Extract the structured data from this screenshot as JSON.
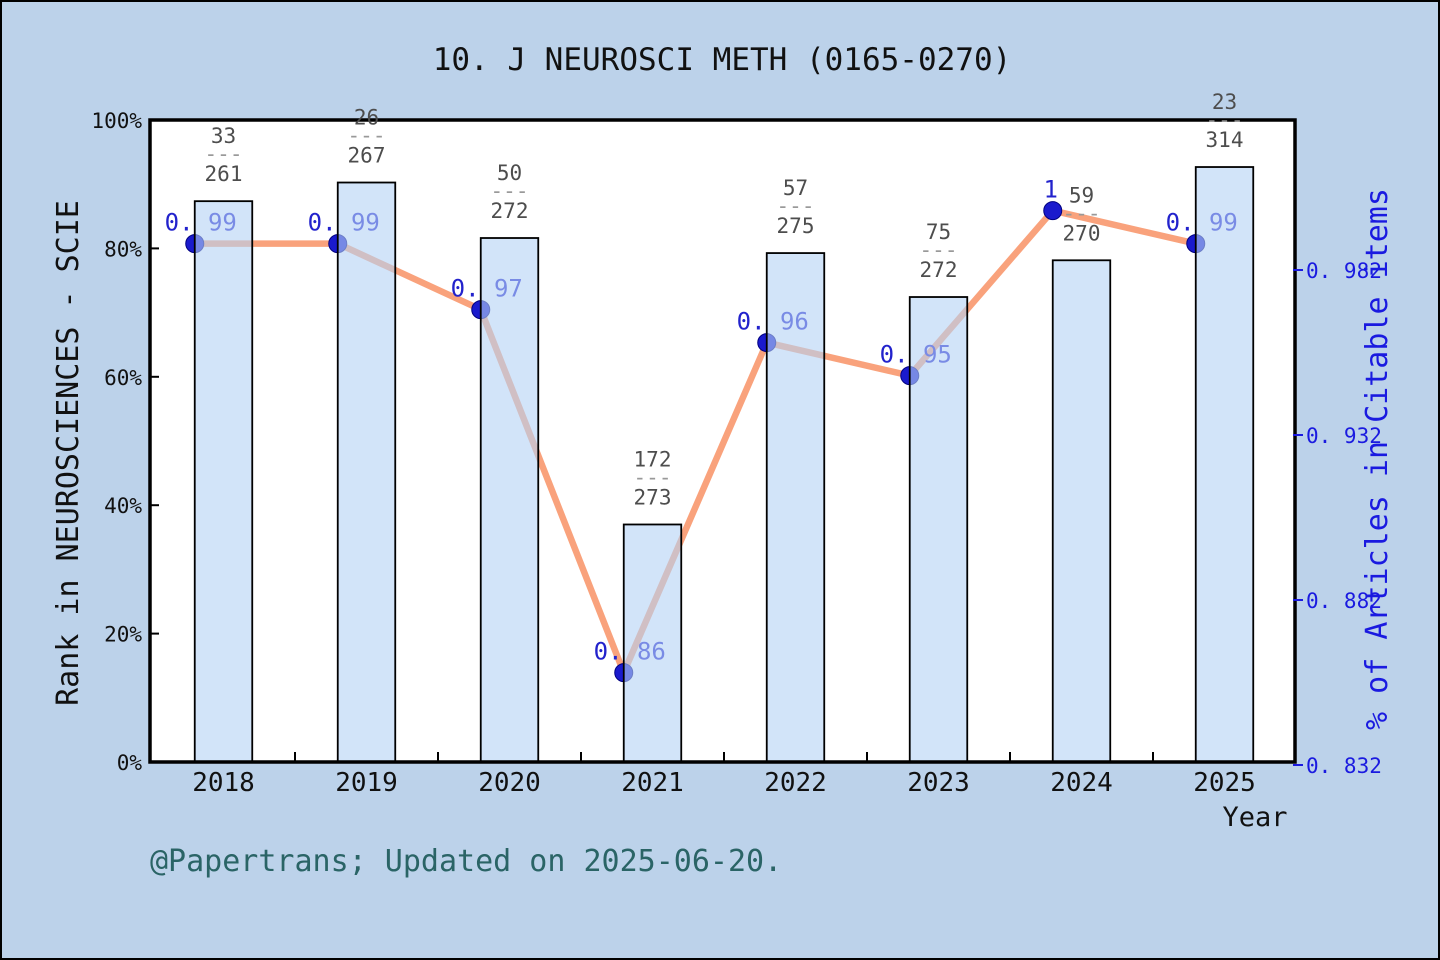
{
  "title": "10. J NEUROSCI METH (0165-0270)",
  "footer": "@Papertrans; Updated on 2025-06-20.",
  "x_axis": {
    "label": "Year",
    "ticks": [
      "2018",
      "2019",
      "2020",
      "2021",
      "2022",
      "2023",
      "2024",
      "2025"
    ]
  },
  "left_axis": {
    "label": "Rank in NEUROSCIENCES - SCIE",
    "ticks": [
      "0%",
      "20%",
      "40%",
      "60%",
      "80%",
      "100%"
    ],
    "tick_values": [
      0,
      0.2,
      0.4,
      0.6,
      0.8,
      1.0
    ]
  },
  "right_axis": {
    "label": "% of Articles in Citable items",
    "ticks": [
      "0. 832",
      "0. 882",
      "0. 932",
      "0. 982"
    ],
    "tick_values": [
      0.832,
      0.882,
      0.932,
      0.982
    ]
  },
  "chart_data": {
    "type": "bar+line",
    "categories": [
      "2018",
      "2019",
      "2020",
      "2021",
      "2022",
      "2023",
      "2024",
      "2025"
    ],
    "series": [
      {
        "name": "Rank in NEUROSCIENCES - SCIE (percentile, bars)",
        "type": "bar",
        "axis": "left",
        "rank": [
          33,
          26,
          50,
          172,
          57,
          75,
          59,
          23
        ],
        "total": [
          261,
          267,
          272,
          273,
          275,
          272,
          270,
          314
        ],
        "fraction_labels": [
          "33/261",
          "26/267",
          "50/272",
          "172/273",
          "57/275",
          "75/272",
          "59/270",
          "23/314"
        ],
        "percentile_values": [
          0.8736,
          0.9026,
          0.8162,
          0.37,
          0.7927,
          0.7243,
          0.7815,
          0.9268
        ]
      },
      {
        "name": "% of Articles in Citable items (line)",
        "type": "line",
        "axis": "right",
        "values": [
          0.99,
          0.99,
          0.97,
          0.86,
          0.96,
          0.95,
          1.0,
          0.99
        ],
        "point_labels": [
          "0. 99",
          "0. 99",
          "0. 97",
          "0. 86",
          "0. 96",
          "0. 95",
          "1",
          "0. 99"
        ]
      }
    ],
    "left_ylim": [
      0,
      1
    ],
    "right_ylim": [
      0.832,
      1.027
    ],
    "grid": false,
    "legend": false
  },
  "colors": {
    "background": "#bcd2ea",
    "plot_background": "#ffffff",
    "plot_border": "#000000",
    "bar_fill": "#b4d2f5",
    "bar_fill_opacity": "0.6",
    "bar_border": "#000000",
    "line": "#f9a27c",
    "dot_fill": "#1a1acd",
    "dot_border": "#000080",
    "point_label": "#2222cc",
    "fraction_text": "#4d4d4d",
    "fraction_dash": "#999999",
    "left_axis_text": "#111111",
    "right_axis_text": "#1a1ae0",
    "footer_text": "#2a6466"
  }
}
